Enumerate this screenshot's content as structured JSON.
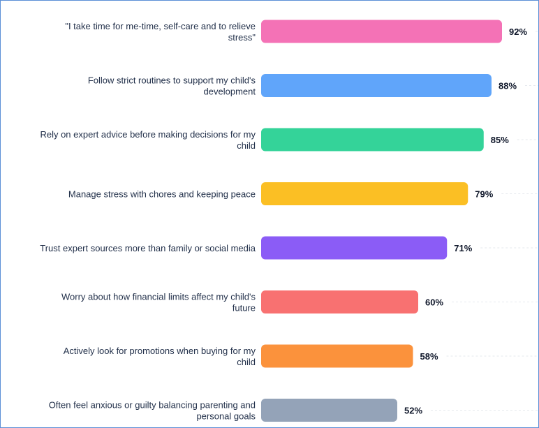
{
  "chart_data": {
    "type": "bar",
    "orientation": "horizontal",
    "categories": [
      "\"I take time for me-time, self-care and to relieve stress\"",
      "Follow strict routines to support my child's development",
      "Rely on expert advice before making decisions for my child",
      "Manage stress with chores and keeping peace",
      "Trust expert sources more than family or social media",
      "Worry about how financial limits affect my child's future",
      "Actively look for promotions when buying for my child",
      "Often feel anxious or guilty balancing parenting and personal goals"
    ],
    "label_lines": [
      [
        "\"I take time for me-time, self-care and to relieve",
        "stress\""
      ],
      [
        "Follow strict routines to support my child's",
        "development"
      ],
      [
        "Rely on expert advice before making decisions for my",
        "child"
      ],
      [
        "Manage stress with chores and keeping peace"
      ],
      [
        "Trust expert sources more than family or social media"
      ],
      [
        "Worry about how financial limits affect my child's",
        "future"
      ],
      [
        "Actively look for promotions when buying for my",
        "child"
      ],
      [
        "Often feel anxious or guilty balancing parenting and",
        "personal goals"
      ]
    ],
    "values": [
      92,
      88,
      85,
      79,
      71,
      60,
      58,
      52
    ],
    "value_labels": [
      "92%",
      "88%",
      "85%",
      "79%",
      "71%",
      "60%",
      "58%",
      "52%"
    ],
    "colors": [
      "#f472b6",
      "#60a5fa",
      "#34d399",
      "#fbbf24",
      "#8b5cf6",
      "#f87171",
      "#fb923c",
      "#94a3b8"
    ],
    "xlim": [
      0,
      100
    ],
    "grid": true,
    "legend": "none"
  }
}
